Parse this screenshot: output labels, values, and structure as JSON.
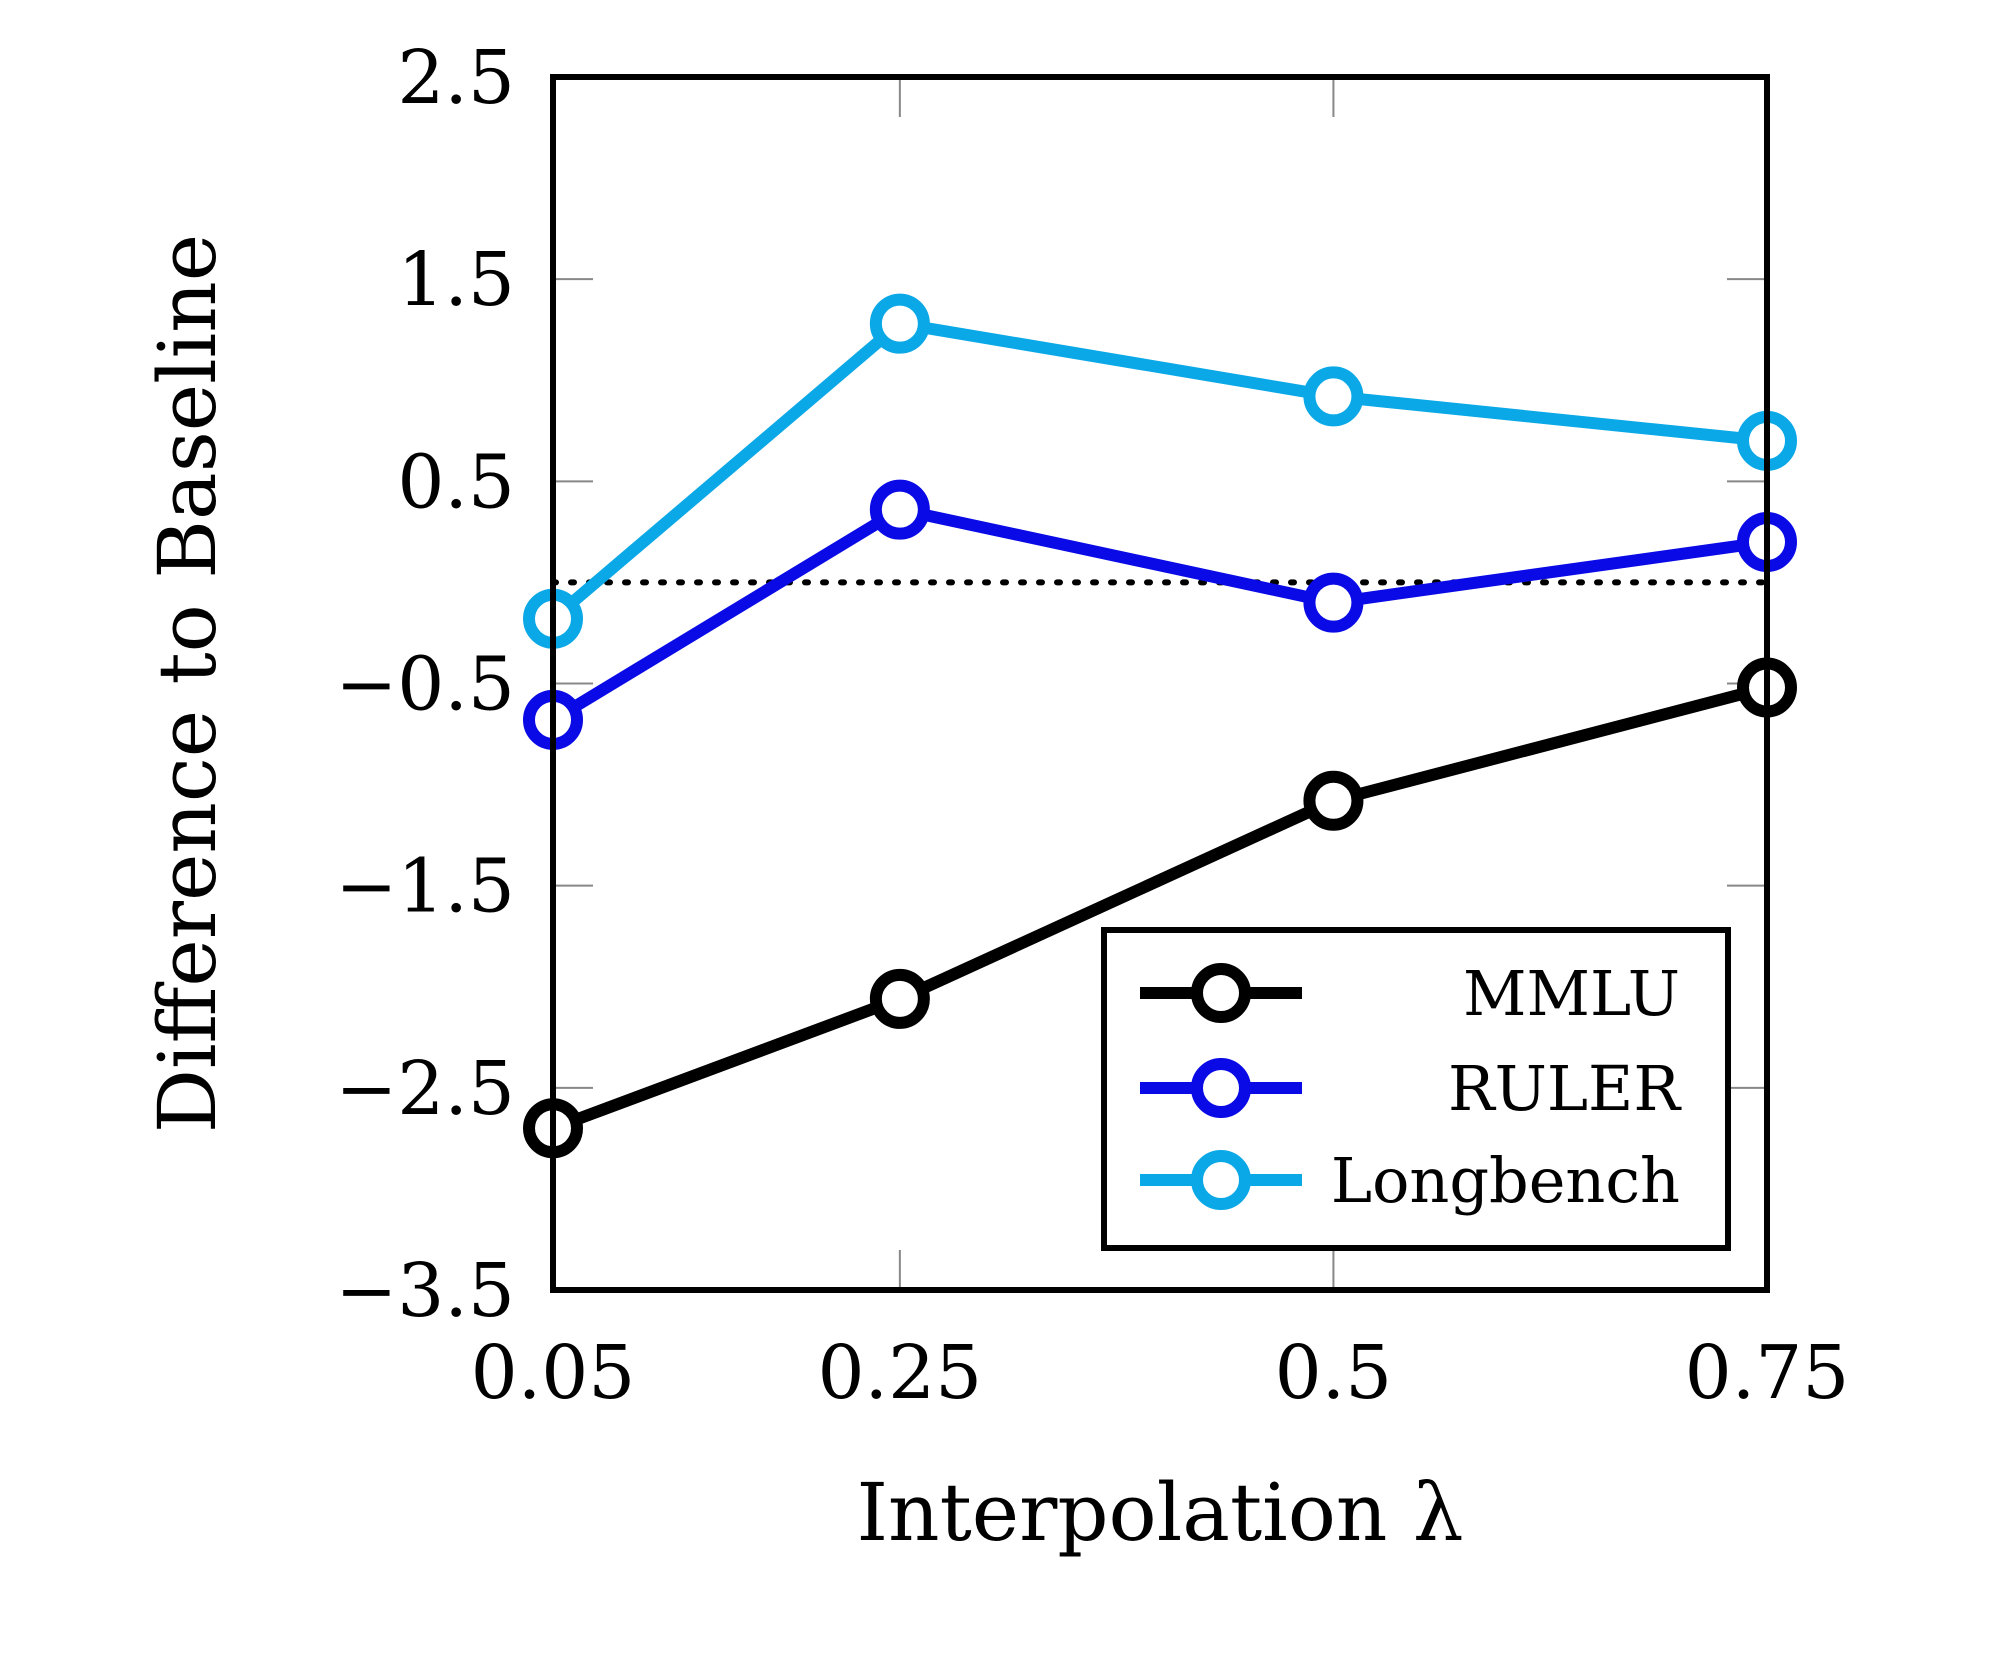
{
  "chart_data": {
    "type": "line",
    "xlabel": "Interpolation λ",
    "ylabel": "Difference to Baseline",
    "x": [
      "0.05",
      "0.25",
      "0.5",
      "0.75"
    ],
    "xlim": [
      0.05,
      0.75
    ],
    "ylim": [
      -3.5,
      2.5
    ],
    "yticks": [
      2.5,
      1.5,
      0.5,
      -0.5,
      -1.5,
      -2.5,
      -3.5
    ],
    "ytick_labels": [
      "2.5",
      "1.5",
      "0.5",
      "−0.5",
      "−1.5",
      "−2.5",
      "−3.5"
    ],
    "baseline": 0,
    "grid": false,
    "legend_position": "bottom-right",
    "series": [
      {
        "name": "MMLU",
        "color": "#000000",
        "values": [
          -2.7,
          -2.06,
          -1.08,
          -0.52
        ]
      },
      {
        "name": "RULER",
        "color": "#0a0ae6",
        "values": [
          -0.68,
          0.36,
          -0.1,
          0.2
        ]
      },
      {
        "name": "Longbench",
        "color": "#0aa8e6",
        "values": [
          -0.18,
          1.28,
          0.92,
          0.7
        ]
      }
    ]
  }
}
